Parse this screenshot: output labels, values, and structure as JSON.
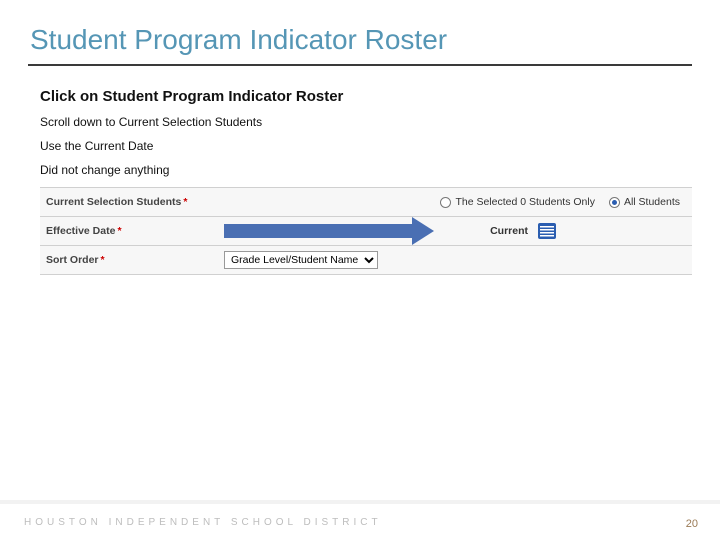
{
  "title": "Student Program Indicator Roster",
  "instructions": {
    "line1": "Click on Student Program Indicator Roster",
    "line2": "Scroll down to Current Selection Students",
    "line3": "Use the Current Date",
    "line4": "Did not change anything"
  },
  "form": {
    "row1": {
      "label": "Current Selection Students",
      "req": "*",
      "option_selected_count": "The Selected 0 Students Only",
      "option_all": "All Students",
      "all_checked": true
    },
    "row2": {
      "label": "Effective Date",
      "req": "*",
      "value_label": "Current",
      "arrow_color": "#4a6fb3"
    },
    "row3": {
      "label": "Sort Order",
      "req": "*",
      "selected": "Grade Level/Student Name"
    }
  },
  "footer": {
    "org": "HOUSTON INDEPENDENT SCHOOL DISTRICT",
    "page": "20"
  },
  "colors": {
    "title": "#5596b5",
    "rule": "#3a3a3a",
    "row_bg": "#f7f7f7",
    "border": "#d0d0d0",
    "accent_blue": "#2a5db0",
    "footer_text": "#bdbdbd",
    "page_num": "#9a7a55"
  }
}
